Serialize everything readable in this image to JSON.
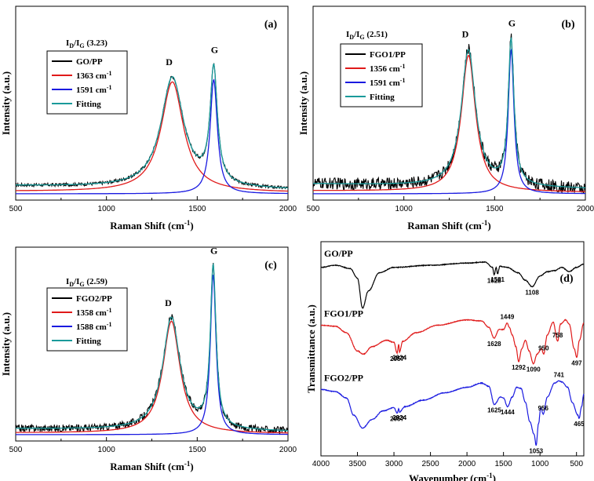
{
  "chart_data": [
    {
      "type": "line",
      "panel_label": "(a)",
      "ratio_label": {
        "base": "I",
        "sub1": "D",
        "mid": "/I",
        "sub2": "G",
        "value": " (3.23)"
      },
      "xlabel": "Raman Shift (cm",
      "xlabel_sup": "-1",
      "xlabel_tail": ")",
      "ylabel": "Intensity (a.u.)",
      "xlim": [
        500,
        2000
      ],
      "x_ticks": [
        "500",
        "1000",
        "1500",
        "2000"
      ],
      "peak_labels": [
        "D",
        "G"
      ],
      "legend": [
        "GO/PP",
        "1363 cm",
        "1591 cm",
        "Fitting"
      ],
      "legend_sup": [
        "",
        "-1",
        "-1",
        ""
      ],
      "colors": [
        "#000000",
        "#e01a1a",
        "#1a1ae0",
        "#1a9a9a"
      ],
      "peaks": {
        "D": {
          "center": 1363,
          "height": 0.55,
          "width": 150
        },
        "G": {
          "center": 1591,
          "height": 0.57,
          "width": 48
        }
      },
      "baseline": 0.04,
      "noise": 0.008
    },
    {
      "type": "line",
      "panel_label": "(b)",
      "ratio_label": {
        "base": "I",
        "sub1": "D",
        "mid": "/I",
        "sub2": "G",
        "value": " (2.51)"
      },
      "xlabel": "Raman Shift (cm",
      "xlabel_sup": "-1",
      "xlabel_tail": ")",
      "ylabel": "Intensity (a.u.)",
      "xlim": [
        500,
        2000
      ],
      "x_ticks": [
        "500",
        "1000",
        "1500",
        "2000"
      ],
      "peak_labels": [
        "D",
        "G"
      ],
      "legend": [
        "FGO1/PP",
        "1356 cm",
        "1591 cm",
        "Fitting"
      ],
      "legend_sup": [
        "",
        "-1",
        "-1",
        ""
      ],
      "colors": [
        "#000000",
        "#e01a1a",
        "#1a1ae0",
        "#1a9a9a"
      ],
      "peaks": {
        "D": {
          "center": 1356,
          "height": 0.68,
          "width": 95
        },
        "G": {
          "center": 1591,
          "height": 0.72,
          "width": 38
        }
      },
      "baseline": 0.05,
      "noise": 0.03
    },
    {
      "type": "line",
      "panel_label": "(c)",
      "ratio_label": {
        "base": "I",
        "sub1": "D",
        "mid": "/I",
        "sub2": "G",
        "value": " (2.59)"
      },
      "xlabel": "Raman Shift (cm",
      "xlabel_sup": "-1",
      "xlabel_tail": ")",
      "ylabel": "Intensity (a.u.)",
      "xlim": [
        500,
        2000
      ],
      "x_ticks": [
        "500",
        "1000",
        "1500",
        "2000"
      ],
      "peak_labels": [
        "D",
        "G"
      ],
      "legend": [
        "FGO2/PP",
        "1358 cm",
        "1588 cm",
        "Fitting"
      ],
      "legend_sup": [
        "",
        "-1",
        "-1",
        ""
      ],
      "colors": [
        "#000000",
        "#e01a1a",
        "#1a1ae0",
        "#1a9a9a"
      ],
      "peaks": {
        "D": {
          "center": 1358,
          "height": 0.56,
          "width": 115
        },
        "G": {
          "center": 1588,
          "height": 0.8,
          "width": 38
        }
      },
      "baseline": 0.03,
      "noise": 0.018
    },
    {
      "type": "line",
      "panel_label": "(d)",
      "xlabel": "Wavenumber (cm",
      "xlabel_sup": "-1",
      "xlabel_tail": ")",
      "ylabel": "Transmittance (a.u.)",
      "xlim": [
        4000,
        400
      ],
      "x_ticks": [
        "4000",
        "3500",
        "3000",
        "2500",
        "2000",
        "1500",
        "1000",
        "500"
      ],
      "series": [
        {
          "name": "GO/PP",
          "color": "#000000",
          "offset": 0.88,
          "points": [
            [
              4000,
              0.0
            ],
            [
              3800,
              0.02
            ],
            [
              3600,
              -0.01
            ],
            [
              3500,
              -0.1
            ],
            [
              3430,
              -0.38
            ],
            [
              3350,
              -0.22
            ],
            [
              3200,
              -0.05
            ],
            [
              3000,
              0.0
            ],
            [
              2500,
              0.02
            ],
            [
              2000,
              0.04
            ],
            [
              1750,
              0.05
            ],
            [
              1650,
              0.0
            ],
            [
              1628,
              -0.07
            ],
            [
              1600,
              0.0
            ],
            [
              1581,
              -0.06
            ],
            [
              1550,
              0.01
            ],
            [
              1450,
              0.0
            ],
            [
              1300,
              -0.05
            ],
            [
              1200,
              -0.12
            ],
            [
              1108,
              -0.18
            ],
            [
              1000,
              -0.08
            ],
            [
              900,
              -0.04
            ],
            [
              800,
              -0.03
            ],
            [
              700,
              0.0
            ],
            [
              600,
              -0.04
            ],
            [
              500,
              0.0
            ],
            [
              400,
              0.03
            ]
          ]
        },
        {
          "name": "FGO1/PP",
          "color": "#e01a1a",
          "offset": 0.6,
          "points": [
            [
              4000,
              0.02
            ],
            [
              3800,
              0.01
            ],
            [
              3650,
              -0.05
            ],
            [
              3500,
              -0.22
            ],
            [
              3420,
              -0.25
            ],
            [
              3300,
              -0.18
            ],
            [
              3100,
              -0.12
            ],
            [
              3000,
              -0.14
            ],
            [
              2957,
              -0.24
            ],
            [
              2935,
              -0.16
            ],
            [
              2924,
              -0.23
            ],
            [
              2880,
              -0.13
            ],
            [
              2700,
              -0.05
            ],
            [
              2400,
              0.02
            ],
            [
              2000,
              0.07
            ],
            [
              1800,
              0.06
            ],
            [
              1700,
              0.0
            ],
            [
              1628,
              -0.1
            ],
            [
              1560,
              -0.02
            ],
            [
              1500,
              -0.02
            ],
            [
              1449,
              0.04
            ],
            [
              1420,
              0.0
            ],
            [
              1380,
              -0.07
            ],
            [
              1330,
              -0.18
            ],
            [
              1292,
              -0.32
            ],
            [
              1250,
              -0.2
            ],
            [
              1200,
              -0.12
            ],
            [
              1150,
              -0.22
            ],
            [
              1090,
              -0.34
            ],
            [
              1040,
              -0.25
            ],
            [
              980,
              -0.2
            ],
            [
              950,
              -0.25
            ],
            [
              900,
              -0.07
            ],
            [
              820,
              0.05
            ],
            [
              758,
              -0.13
            ],
            [
              720,
              0.03
            ],
            [
              650,
              0.07
            ],
            [
              600,
              0.03
            ],
            [
              530,
              -0.2
            ],
            [
              497,
              -0.28
            ],
            [
              460,
              -0.12
            ],
            [
              400,
              0.04
            ]
          ]
        },
        {
          "name": "FGO2/PP",
          "color": "#1a1ae0",
          "offset": 0.3,
          "points": [
            [
              4000,
              0.02
            ],
            [
              3800,
              0.0
            ],
            [
              3650,
              -0.06
            ],
            [
              3550,
              -0.22
            ],
            [
              3430,
              -0.34
            ],
            [
              3300,
              -0.26
            ],
            [
              3150,
              -0.18
            ],
            [
              3000,
              -0.15
            ],
            [
              2957,
              -0.2
            ],
            [
              2935,
              -0.16
            ],
            [
              2924,
              -0.19
            ],
            [
              2850,
              -0.14
            ],
            [
              2600,
              -0.08
            ],
            [
              2300,
              -0.01
            ],
            [
              2000,
              0.04
            ],
            [
              1800,
              0.08
            ],
            [
              1700,
              0.05
            ],
            [
              1625,
              -0.12
            ],
            [
              1540,
              -0.05
            ],
            [
              1500,
              -0.06
            ],
            [
              1444,
              -0.14
            ],
            [
              1380,
              -0.05
            ],
            [
              1320,
              0.04
            ],
            [
              1260,
              0.03
            ],
            [
              1200,
              -0.1
            ],
            [
              1140,
              -0.28
            ],
            [
              1080,
              -0.4
            ],
            [
              1053,
              -0.5
            ],
            [
              1020,
              -0.3
            ],
            [
              990,
              -0.15
            ],
            [
              956,
              -0.21
            ],
            [
              900,
              -0.05
            ],
            [
              800,
              0.08
            ],
            [
              741,
              0.1
            ],
            [
              700,
              0.09
            ],
            [
              620,
              0.04
            ],
            [
              560,
              -0.1
            ],
            [
              480,
              -0.22
            ],
            [
              465,
              -0.25
            ],
            [
              430,
              -0.14
            ],
            [
              400,
              -0.02
            ]
          ]
        }
      ],
      "annotations": [
        {
          "text": "1628",
          "series": 0,
          "x": 1628
        },
        {
          "text": "1581",
          "series": 0,
          "x": 1581
        },
        {
          "text": "1108",
          "series": 0,
          "x": 1108
        },
        {
          "text": "1449",
          "series": 1,
          "x": 1449
        },
        {
          "text": "2957",
          "series": 1,
          "x": 2957
        },
        {
          "text": "2924",
          "series": 1,
          "x": 2924
        },
        {
          "text": "1628",
          "series": 1,
          "x": 1628
        },
        {
          "text": "758",
          "series": 1,
          "x": 758
        },
        {
          "text": "950",
          "series": 1,
          "x": 950
        },
        {
          "text": "1292",
          "series": 1,
          "x": 1292
        },
        {
          "text": "1090",
          "series": 1,
          "x": 1090
        },
        {
          "text": "497",
          "series": 1,
          "x": 497
        },
        {
          "text": "741",
          "series": 2,
          "x": 741
        },
        {
          "text": "2957",
          "series": 2,
          "x": 2957
        },
        {
          "text": "2924",
          "series": 2,
          "x": 2924
        },
        {
          "text": "1625",
          "series": 2,
          "x": 1625
        },
        {
          "text": "1444",
          "series": 2,
          "x": 1444
        },
        {
          "text": "956",
          "series": 2,
          "x": 956
        },
        {
          "text": "465",
          "series": 2,
          "x": 465
        },
        {
          "text": "1053",
          "series": 2,
          "x": 1053
        }
      ]
    }
  ]
}
